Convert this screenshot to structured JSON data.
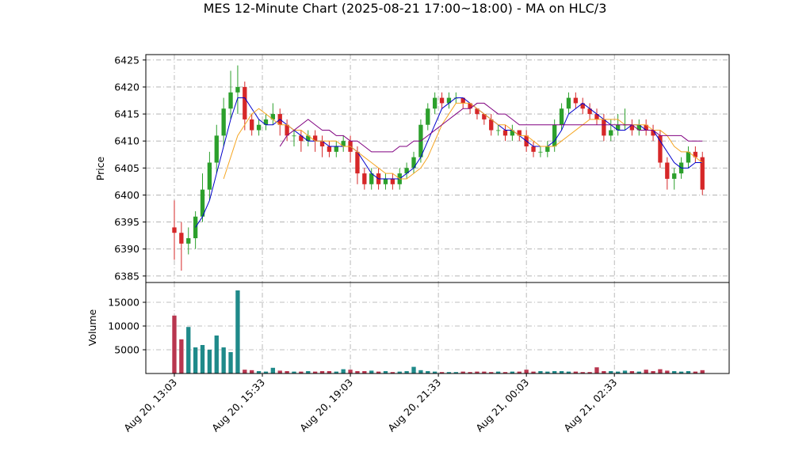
{
  "chart_data": {
    "type": "candlestick",
    "title": "MES 12-Minute Chart (2025-08-21 17:00~18:00) - MA on HLC/3",
    "ylabel": "Price",
    "x": [
      0,
      1,
      2,
      3,
      4,
      5,
      6,
      7,
      8,
      9,
      10,
      11,
      12,
      13,
      14,
      15,
      16,
      17,
      18,
      19,
      20,
      21,
      22,
      23,
      24,
      25,
      26,
      27,
      28,
      29,
      30,
      31,
      32,
      33,
      34,
      35,
      36,
      37,
      38,
      39,
      40,
      41,
      42,
      43,
      44,
      45,
      46,
      47,
      48,
      49,
      50,
      51,
      52,
      53,
      54,
      55,
      56,
      57,
      58,
      59,
      60,
      61,
      62,
      63,
      64,
      65,
      66,
      67,
      68,
      69,
      70,
      71,
      72,
      73,
      74,
      75
    ],
    "xlim": [
      -4.05,
      78.8
    ],
    "xticks": [
      {
        "value": 0,
        "label": "Aug 20, 13:03"
      },
      {
        "value": 12.5,
        "label": "Aug 20, 15:33"
      },
      {
        "value": 25,
        "label": "Aug 20, 19:03"
      },
      {
        "value": 37.5,
        "label": "Aug 20, 21:33"
      },
      {
        "value": 50,
        "label": "Aug 21, 00:03"
      },
      {
        "value": 62.5,
        "label": "Aug 21, 02:33"
      }
    ],
    "ylim": [
      6383.8,
      6426
    ],
    "yticks": [
      6385,
      6390,
      6395,
      6400,
      6405,
      6410,
      6415,
      6420,
      6425
    ],
    "grid": true,
    "up_color": "#2ca02c",
    "down_color": "#d62728",
    "open": [
      6394,
      6393,
      6391,
      6392,
      6396,
      6401,
      6406,
      6411,
      6416,
      6419,
      6420,
      6414,
      6412,
      6413,
      6414,
      6415,
      6413,
      6411,
      6411,
      6410,
      6411,
      6410,
      6409,
      6408,
      6409,
      6410,
      6408,
      6404,
      6402,
      6404,
      6402,
      6403,
      6402,
      6404,
      6405,
      6407,
      6413,
      6416,
      6418,
      6417,
      6418,
      6418,
      6417,
      6416,
      6415,
      6414,
      6412,
      6412,
      6411,
      6412,
      6411,
      6409,
      6408,
      6408,
      6409,
      6413,
      6416,
      6418,
      6417,
      6416,
      6415,
      6414,
      6411,
      6412,
      6413,
      6413,
      6412,
      6413,
      6412,
      6411,
      6406,
      6403,
      6404,
      6406,
      6408,
      6407
    ],
    "high": [
      6399,
      6395,
      6394,
      6397,
      6404,
      6408,
      6413,
      6418,
      6423,
      6424,
      6421,
      6415,
      6414,
      6415,
      6417,
      6416,
      6414,
      6412,
      6412,
      6412,
      6412,
      6411,
      6410,
      6410,
      6411,
      6411,
      6409,
      6405,
      6405,
      6405,
      6404,
      6404,
      6405,
      6406,
      6408,
      6414,
      6417,
      6419,
      6419,
      6419,
      6419,
      6418,
      6417,
      6416,
      6415,
      6415,
      6413,
      6413,
      6413,
      6412,
      6412,
      6410,
      6409,
      6410,
      6414,
      6417,
      6419,
      6419,
      6418,
      6417,
      6416,
      6415,
      6414,
      6415,
      6416,
      6414,
      6414,
      6414,
      6413,
      6412,
      6407,
      6405,
      6407,
      6409,
      6409,
      6408
    ],
    "low": [
      6388,
      6386,
      6389,
      6390,
      6395,
      6399,
      6404,
      6409,
      6414,
      6415,
      6412,
      6411,
      6411,
      6412,
      6413,
      6411,
      6410,
      6409,
      6408,
      6409,
      6408,
      6407,
      6407,
      6407,
      6408,
      6406,
      6402,
      6401,
      6401,
      6401,
      6401,
      6401,
      6401,
      6403,
      6404,
      6406,
      6412,
      6415,
      6416,
      6416,
      6417,
      6416,
      6415,
      6414,
      6413,
      6411,
      6411,
      6410,
      6410,
      6410,
      6408,
      6407,
      6407,
      6407,
      6408,
      6412,
      6415,
      6416,
      6415,
      6414,
      6413,
      6410,
      6410,
      6411,
      6412,
      6411,
      6411,
      6411,
      6410,
      6405,
      6401,
      6401,
      6403,
      6405,
      6406,
      6400
    ],
    "close": [
      6393,
      6391,
      6392,
      6396,
      6401,
      6406,
      6411,
      6416,
      6419,
      6420,
      6414,
      6412,
      6413,
      6414,
      6415,
      6413,
      6411,
      6411,
      6410,
      6411,
      6410,
      6409,
      6408,
      6409,
      6410,
      6408,
      6404,
      6402,
      6404,
      6402,
      6403,
      6402,
      6404,
      6405,
      6407,
      6413,
      6416,
      6418,
      6417,
      6418,
      6418,
      6417,
      6416,
      6415,
      6414,
      6412,
      6412,
      6411,
      6412,
      6411,
      6409,
      6408,
      6408,
      6409,
      6413,
      6416,
      6418,
      6417,
      6416,
      6415,
      6414,
      6411,
      6412,
      6413,
      6413,
      6412,
      6413,
      6412,
      6411,
      6406,
      6403,
      6404,
      6406,
      6408,
      6407,
      6401
    ],
    "moving_averages": [
      {
        "color": "#0000cc",
        "values": [
          null,
          null,
          null,
          6394,
          6396,
          6399,
          6404,
          6409,
          6414,
          6418,
          6418,
          6416,
          6414,
          6413,
          6413,
          6414,
          6413,
          6412,
          6411,
          6410,
          6410,
          6410,
          6409,
          6409,
          6409,
          6409,
          6408,
          6406,
          6404,
          6403,
          6403,
          6403,
          6403,
          6404,
          6405,
          6407,
          6410,
          6413,
          6416,
          6417,
          6418,
          6418,
          6417,
          6416,
          6415,
          6414,
          6413,
          6412,
          6412,
          6411,
          6410,
          6409,
          6409,
          6409,
          6410,
          6412,
          6415,
          6416,
          6417,
          6416,
          6415,
          6414,
          6413,
          6412,
          6412,
          6413,
          6413,
          6412,
          6412,
          6410,
          6408,
          6406,
          6405,
          6405,
          6406,
          6406
        ]
      },
      {
        "color": "#f5a623",
        "values": [
          null,
          null,
          null,
          null,
          null,
          null,
          null,
          6403,
          6407,
          6411,
          6413,
          6415,
          6416,
          6415,
          6414,
          6413,
          6413,
          6412,
          6412,
          6411,
          6410,
          6410,
          6410,
          6410,
          6409,
          6409,
          6408,
          6407,
          6406,
          6405,
          6404,
          6404,
          6403,
          6403,
          6404,
          6405,
          6407,
          6410,
          6413,
          6415,
          6417,
          6417,
          6417,
          6416,
          6415,
          6414,
          6413,
          6413,
          6412,
          6411,
          6411,
          6410,
          6409,
          6409,
          6409,
          6410,
          6411,
          6412,
          6413,
          6414,
          6414,
          6414,
          6414,
          6414,
          6413,
          6413,
          6413,
          6413,
          6412,
          6412,
          6411,
          6409,
          6408,
          6408,
          6407,
          6406
        ]
      },
      {
        "color": "#800080",
        "values": [
          null,
          null,
          null,
          null,
          null,
          null,
          null,
          null,
          null,
          null,
          null,
          null,
          null,
          null,
          null,
          6409,
          6411,
          6412,
          6413,
          6414,
          6413,
          6412,
          6412,
          6411,
          6411,
          6410,
          6410,
          6409,
          6408,
          6408,
          6408,
          6408,
          6409,
          6409,
          6410,
          6410,
          6411,
          6412,
          6413,
          6414,
          6415,
          6416,
          6416,
          6417,
          6417,
          6416,
          6415,
          6415,
          6414,
          6413,
          6413,
          6413,
          6413,
          6413,
          6413,
          6413,
          6413,
          6413,
          6413,
          6413,
          6413,
          6413,
          6413,
          6413,
          6413,
          6413,
          6412,
          6412,
          6412,
          6411,
          6411,
          6411,
          6411,
          6410,
          6410,
          6410
        ]
      }
    ],
    "volume": {
      "ylabel": "Volume",
      "ylim": [
        0,
        19170
      ],
      "yticks": [
        5000,
        10000,
        15000
      ],
      "up_color": "#1f8a8a",
      "down_color": "#b8364f",
      "values": [
        12200,
        7200,
        9800,
        5500,
        6000,
        5000,
        8000,
        5500,
        4500,
        17500,
        800,
        700,
        500,
        400,
        1200,
        600,
        500,
        400,
        400,
        500,
        400,
        500,
        500,
        400,
        900,
        800,
        500,
        500,
        600,
        400,
        500,
        300,
        400,
        500,
        1400,
        700,
        500,
        400,
        300,
        300,
        300,
        400,
        300,
        400,
        400,
        300,
        400,
        300,
        400,
        400,
        800,
        400,
        500,
        400,
        500,
        500,
        400,
        400,
        300,
        300,
        1300,
        500,
        500,
        400,
        600,
        500,
        400,
        800,
        500,
        900,
        600,
        500,
        400,
        500,
        400,
        700
      ]
    }
  }
}
